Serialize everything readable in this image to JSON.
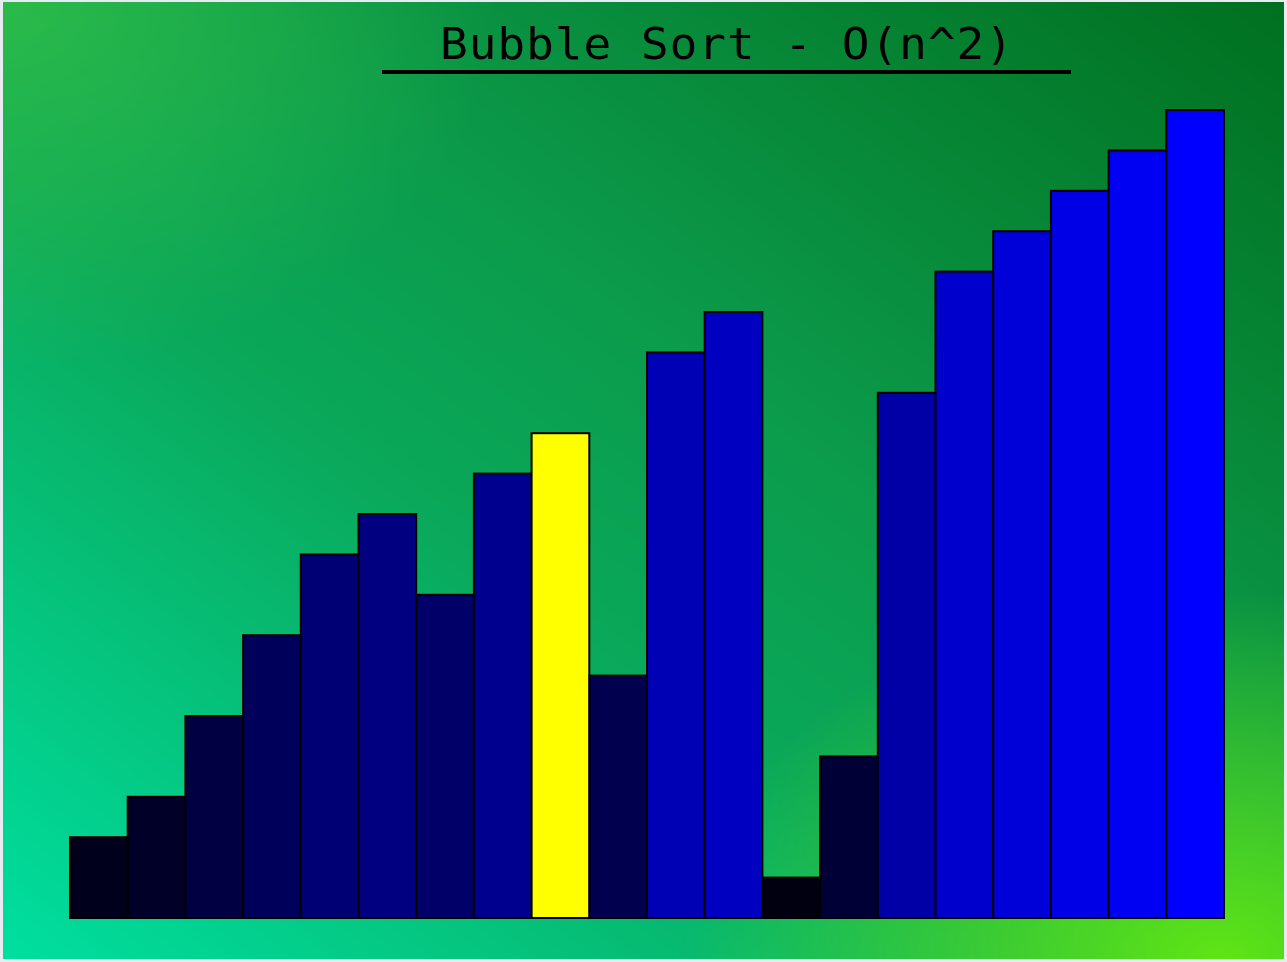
{
  "window": {
    "title": "Bubble Sort - O(n^2)"
  },
  "colors": {
    "bar_highlight": "#ffff00",
    "bar_outline": "#000000",
    "bar_dark": "#000010",
    "bar_bright": "#0000ff",
    "background_top_left": "#39b54a",
    "background_top_right": "#00701f",
    "background_bottom_left": "#00dfa0",
    "background_bottom_right": "#60e81a"
  },
  "chart_data": {
    "type": "bar",
    "title": "Bubble Sort - O(n^2)",
    "highlighted_index": 8,
    "values": [
      2,
      3,
      5,
      7,
      9,
      10,
      8,
      11,
      12,
      6,
      14,
      15,
      1,
      4,
      13,
      16,
      17,
      18,
      19,
      20
    ],
    "ylim": [
      0,
      20
    ]
  }
}
